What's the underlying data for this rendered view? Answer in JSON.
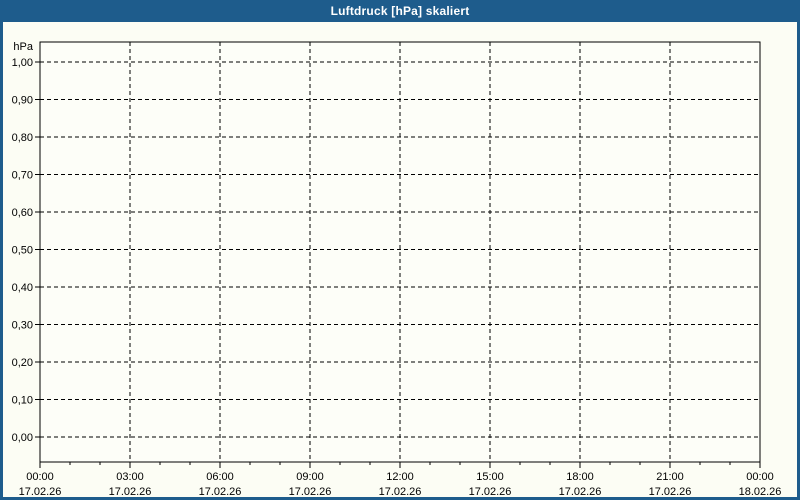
{
  "title_bar": {
    "text": "Luftdruck [hPa] skaliert"
  },
  "colors": {
    "frame": "#1e5c8c",
    "title_text": "#ffffff",
    "window_bg": "#fcfdf4",
    "plot_bg": "#fdfef8",
    "grid_color": "#000000"
  },
  "chart_data": {
    "type": "line",
    "title": "Luftdruck [hPa] skaliert",
    "xlabel": "",
    "ylabel": "hPa",
    "ylim": [
      0.0,
      1.0
    ],
    "y_tick_step": 0.1,
    "y_tick_labels": [
      "1,00",
      "0,90",
      "0,80",
      "0,70",
      "0,60",
      "0,50",
      "0,40",
      "0,30",
      "0,20",
      "0,10",
      "0,00"
    ],
    "x_range": [
      "17.02.26 00:00",
      "18.02.26 00:00"
    ],
    "x_major_step_hours": 3,
    "x_minor_step_hours": 1,
    "x_major_ticks": [
      {
        "time": "00:00",
        "date": "17.02.26"
      },
      {
        "time": "03:00",
        "date": "17.02.26"
      },
      {
        "time": "06:00",
        "date": "17.02.26"
      },
      {
        "time": "09:00",
        "date": "17.02.26"
      },
      {
        "time": "12:00",
        "date": "17.02.26"
      },
      {
        "time": "15:00",
        "date": "17.02.26"
      },
      {
        "time": "18:00",
        "date": "17.02.26"
      },
      {
        "time": "21:00",
        "date": "17.02.26"
      },
      {
        "time": "00:00",
        "date": "18.02.26"
      }
    ],
    "grid": "dashed",
    "legend": "none",
    "series": []
  }
}
